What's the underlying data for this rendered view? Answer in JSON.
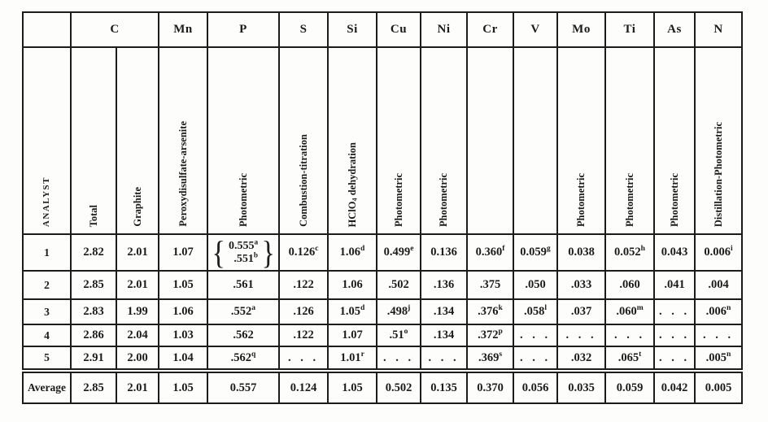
{
  "page": {
    "background": "#fdfdfc",
    "ink_color": "#1c1c1c"
  },
  "table": {
    "column_keys": [
      "analyst",
      "c-total",
      "c-graphite",
      "mn",
      "p",
      "s",
      "si",
      "cu",
      "ni",
      "cr",
      "v",
      "mo",
      "ti",
      "as",
      "n"
    ],
    "element_headers": [
      {
        "label": "",
        "span": 1
      },
      {
        "label": "C",
        "span": 2
      },
      {
        "label": "Mn",
        "span": 1
      },
      {
        "label": "P",
        "span": 1
      },
      {
        "label": "S",
        "span": 1
      },
      {
        "label": "Si",
        "span": 1
      },
      {
        "label": "Cu",
        "span": 1
      },
      {
        "label": "Ni",
        "span": 1
      },
      {
        "label": "Cr",
        "span": 1
      },
      {
        "label": "V",
        "span": 1
      },
      {
        "label": "Mo",
        "span": 1
      },
      {
        "label": "Ti",
        "span": 1
      },
      {
        "label": "As",
        "span": 1
      },
      {
        "label": "N",
        "span": 1
      }
    ],
    "method_headers": [
      "ANALYST",
      "Total",
      "Graphite",
      "Peroxydisulfate-arsenite",
      "Photometric",
      "Combustion-titration",
      "HClO~4~ dehydration",
      "Photometric",
      "Photometric",
      "",
      "",
      "Photometric",
      "Photometric",
      "Photometric",
      "Distillation-Photometric"
    ],
    "rows": [
      {
        "label": "1",
        "values": [
          "2.82",
          "2.01",
          "1.07",
          {
            "brace": [
              "0.555^a",
              ".551^b"
            ]
          },
          "0.126^c",
          "1.06^d",
          "0.499^e",
          "0.136",
          "0.360^f",
          "0.059^g",
          "0.038",
          "0.052^h",
          "0.043",
          "0.006^i"
        ]
      },
      {
        "label": "2",
        "values": [
          "2.85",
          "2.01",
          "1.05",
          ".561",
          ".122",
          "1.06",
          ".502",
          ".136",
          ".375",
          ".050",
          ".033",
          ".060",
          ".041",
          ".004"
        ]
      },
      {
        "label": "3",
        "values": [
          "2.83",
          "1.99",
          "1.06",
          ".552^a",
          ".126",
          "1.05^d",
          ".498^j",
          ".134",
          ".376^k",
          ".058^l",
          ".037",
          ".060^m",
          "...",
          ".006^n"
        ]
      },
      {
        "label": "4",
        "values": [
          "2.86",
          "2.04",
          "1.03",
          ".562",
          ".122",
          "1.07",
          ".51^o",
          ".134",
          ".372^p",
          "...",
          "...",
          "...",
          "...",
          "..."
        ]
      },
      {
        "label": "5",
        "values": [
          "2.91",
          "2.00",
          "1.04",
          ".562^q",
          "...",
          "1.01^r",
          "...",
          "...",
          ".369^s",
          "...",
          ".032",
          ".065^t",
          "...",
          ".005^n"
        ]
      }
    ],
    "average_row": {
      "label": "Average",
      "values": [
        "2.85",
        "2.01",
        "1.05",
        "0.557",
        "0.124",
        "1.05",
        "0.502",
        "0.135",
        "0.370",
        "0.056",
        "0.035",
        "0.059",
        "0.042",
        "0.005"
      ]
    }
  }
}
